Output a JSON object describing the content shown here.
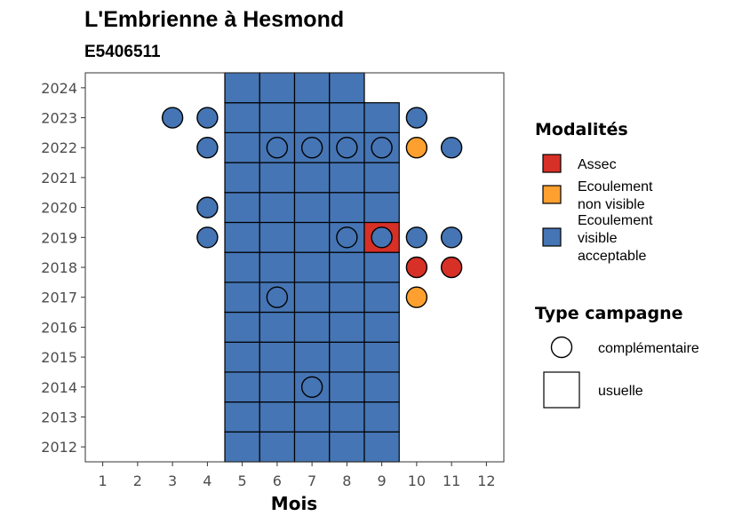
{
  "colors": {
    "assec": "#d73027",
    "ecoulement_non_visible": "#fea02f",
    "ecoulement_visible": "#4575b4",
    "outline": "#000000"
  },
  "chart_data": {
    "type": "heatmap",
    "title": "L'Embrienne à Hesmond",
    "subtitle": "E5406511",
    "xlabel": "Mois",
    "ylabel": "",
    "x_ticks": [
      1,
      2,
      3,
      4,
      5,
      6,
      7,
      8,
      9,
      10,
      11,
      12
    ],
    "y_ticks": [
      2012,
      2013,
      2014,
      2015,
      2016,
      2017,
      2018,
      2019,
      2020,
      2021,
      2022,
      2023,
      2024
    ],
    "xlim": [
      0.5,
      12.5
    ],
    "ylim": [
      2011.5,
      2024.5
    ],
    "grid": false,
    "legend_position": "right",
    "legends": [
      {
        "title": "Modalités",
        "items": [
          {
            "key": "assec",
            "lines": [
              "Assec"
            ],
            "color": "#d73027"
          },
          {
            "key": "ecoulement_non_visible",
            "lines": [
              "Ecoulement",
              "non visible"
            ],
            "color": "#fea02f"
          },
          {
            "key": "ecoulement_visible",
            "lines": [
              "Ecoulement",
              "visible",
              "acceptable"
            ],
            "color": "#4575b4"
          }
        ]
      },
      {
        "title": "Type campagne",
        "items": [
          {
            "key": "complementaire",
            "label": "complémentaire",
            "shape": "circle"
          },
          {
            "key": "usuelle",
            "label": "usuelle",
            "shape": "square"
          }
        ]
      }
    ],
    "usuelle": [
      {
        "year": 2012,
        "months": [
          5,
          6,
          7,
          8,
          9
        ],
        "modalite": "ecoulement_visible"
      },
      {
        "year": 2013,
        "months": [
          5,
          6,
          7,
          8,
          9
        ],
        "modalite": "ecoulement_visible"
      },
      {
        "year": 2014,
        "months": [
          5,
          6,
          7,
          8,
          9
        ],
        "modalite": "ecoulement_visible"
      },
      {
        "year": 2015,
        "months": [
          5,
          6,
          7,
          8,
          9
        ],
        "modalite": "ecoulement_visible"
      },
      {
        "year": 2016,
        "months": [
          5,
          6,
          7,
          8,
          9
        ],
        "modalite": "ecoulement_visible"
      },
      {
        "year": 2017,
        "months": [
          5,
          6,
          7,
          8,
          9
        ],
        "modalite": "ecoulement_visible"
      },
      {
        "year": 2018,
        "months": [
          5,
          6,
          7,
          8,
          9
        ],
        "modalite": "ecoulement_visible"
      },
      {
        "year": 2019,
        "months": [
          5,
          6,
          7,
          8
        ],
        "modalite": "ecoulement_visible"
      },
      {
        "year": 2019,
        "months": [
          9
        ],
        "modalite": "assec"
      },
      {
        "year": 2020,
        "months": [
          5,
          6,
          7,
          8,
          9
        ],
        "modalite": "ecoulement_visible"
      },
      {
        "year": 2021,
        "months": [
          5,
          6,
          7,
          8,
          9
        ],
        "modalite": "ecoulement_visible"
      },
      {
        "year": 2022,
        "months": [
          5,
          6,
          7,
          8,
          9
        ],
        "modalite": "ecoulement_visible"
      },
      {
        "year": 2023,
        "months": [
          5,
          6,
          7,
          8,
          9
        ],
        "modalite": "ecoulement_visible"
      },
      {
        "year": 2024,
        "months": [
          5,
          6,
          7,
          8
        ],
        "modalite": "ecoulement_visible"
      }
    ],
    "complementaire": [
      {
        "year": 2023,
        "month": 3,
        "modalite": "ecoulement_visible"
      },
      {
        "year": 2023,
        "month": 4,
        "modalite": "ecoulement_visible"
      },
      {
        "year": 2023,
        "month": 10,
        "modalite": "ecoulement_visible"
      },
      {
        "year": 2022,
        "month": 4,
        "modalite": "ecoulement_visible"
      },
      {
        "year": 2022,
        "month": 6,
        "modalite": "ecoulement_visible"
      },
      {
        "year": 2022,
        "month": 7,
        "modalite": "ecoulement_visible"
      },
      {
        "year": 2022,
        "month": 8,
        "modalite": "ecoulement_visible"
      },
      {
        "year": 2022,
        "month": 9,
        "modalite": "ecoulement_visible"
      },
      {
        "year": 2022,
        "month": 10,
        "modalite": "ecoulement_non_visible"
      },
      {
        "year": 2022,
        "month": 11,
        "modalite": "ecoulement_visible"
      },
      {
        "year": 2020,
        "month": 4,
        "modalite": "ecoulement_visible"
      },
      {
        "year": 2019,
        "month": 4,
        "modalite": "ecoulement_visible"
      },
      {
        "year": 2019,
        "month": 8,
        "modalite": "ecoulement_visible"
      },
      {
        "year": 2019,
        "month": 9,
        "modalite": "ecoulement_visible"
      },
      {
        "year": 2019,
        "month": 10,
        "modalite": "ecoulement_visible"
      },
      {
        "year": 2019,
        "month": 11,
        "modalite": "ecoulement_visible"
      },
      {
        "year": 2018,
        "month": 10,
        "modalite": "assec"
      },
      {
        "year": 2018,
        "month": 11,
        "modalite": "assec"
      },
      {
        "year": 2017,
        "month": 6,
        "modalite": "ecoulement_visible"
      },
      {
        "year": 2017,
        "month": 10,
        "modalite": "ecoulement_non_visible"
      },
      {
        "year": 2014,
        "month": 7,
        "modalite": "ecoulement_visible"
      }
    ]
  }
}
